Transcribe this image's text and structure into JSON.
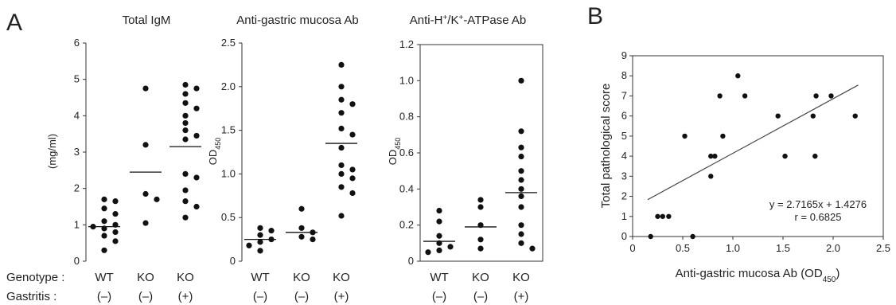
{
  "panel_labels": [
    "A",
    "B"
  ],
  "row_labels": {
    "genotype": "Genotype :",
    "gastritis": "Gastritis :"
  },
  "groups": [
    {
      "genotype": "WT",
      "gastritis": "(–)"
    },
    {
      "genotype": "KO",
      "gastritis": "(–)"
    },
    {
      "genotype": "KO",
      "gastritis": "(+)"
    }
  ],
  "chart_data": [
    {
      "type": "scatter",
      "title": "Total IgM",
      "ylabel": "(mg/ml)",
      "ylim": [
        0,
        6
      ],
      "yticks": [
        "0",
        "1",
        "2",
        "3",
        "4",
        "5",
        "6"
      ],
      "categories": [
        "WT (–)",
        "KO (–)",
        "KO (+)"
      ],
      "points": [
        [
          1.7,
          1.65,
          1.45,
          1.3,
          1.1,
          1.0,
          0.95,
          0.9,
          0.8,
          0.7,
          0.55,
          0.3
        ],
        [
          4.75,
          3.2,
          1.85,
          1.7,
          1.05
        ],
        [
          4.85,
          4.75,
          4.6,
          4.35,
          4.2,
          4.0,
          3.8,
          3.6,
          3.45,
          3.35,
          2.4,
          2.3,
          1.95,
          1.65,
          1.5,
          1.2
        ]
      ],
      "means": [
        0.95,
        2.45,
        3.15
      ]
    },
    {
      "type": "scatter",
      "title": "Anti-gastric mucosa Ab",
      "ylabel": "OD450",
      "ylim": [
        0,
        2.5
      ],
      "yticks": [
        "0",
        "0.5",
        "1.0",
        "1.5",
        "2.0",
        "2.5"
      ],
      "categories": [
        "WT (–)",
        "KO (–)",
        "KO (+)"
      ],
      "points": [
        [
          0.38,
          0.35,
          0.3,
          0.25,
          0.22,
          0.18,
          0.12
        ],
        [
          0.6,
          0.38,
          0.33,
          0.28,
          0.25
        ],
        [
          2.25,
          2.0,
          1.85,
          1.8,
          1.7,
          1.52,
          1.45,
          1.3,
          1.1,
          1.05,
          1.0,
          0.95,
          0.85,
          0.78,
          0.52
        ]
      ],
      "means": [
        0.25,
        0.33,
        1.35
      ]
    },
    {
      "type": "scatter",
      "title": "Anti-H+/K+-ATPase Ab",
      "ylabel": "OD450",
      "ylim": [
        0,
        1.2
      ],
      "yticks": [
        "0",
        "0.2",
        "0.4",
        "0.6",
        "0.8",
        "1.0",
        "1.2"
      ],
      "categories": [
        "WT (–)",
        "KO (–)",
        "KO (+)"
      ],
      "points": [
        [
          0.28,
          0.22,
          0.14,
          0.1,
          0.08,
          0.06,
          0.05
        ],
        [
          0.34,
          0.3,
          0.2,
          0.12,
          0.07
        ],
        [
          1.0,
          0.72,
          0.63,
          0.58,
          0.5,
          0.45,
          0.4,
          0.36,
          0.3,
          0.2,
          0.15,
          0.1,
          0.07
        ]
      ],
      "means": [
        0.11,
        0.19,
        0.38
      ]
    },
    {
      "type": "scatter",
      "xlabel": "Anti-gastric mucosa Ab (OD450)",
      "ylabel": "Total pathological score",
      "xlim": [
        0,
        2.5
      ],
      "ylim": [
        0,
        9
      ],
      "xticks": [
        "0",
        "0.5",
        "1.0",
        "1.5",
        "2.0",
        "2.5"
      ],
      "yticks": [
        "0",
        "1",
        "2",
        "3",
        "4",
        "5",
        "6",
        "7",
        "8",
        "9"
      ],
      "x": [
        0.18,
        0.25,
        0.3,
        0.36,
        0.52,
        0.6,
        0.78,
        0.78,
        0.82,
        0.87,
        0.9,
        1.05,
        1.12,
        1.45,
        1.52,
        1.8,
        1.82,
        1.83,
        1.98,
        2.22
      ],
      "y": [
        0,
        1,
        1,
        1,
        5,
        0,
        3,
        4,
        4,
        7,
        5,
        8,
        7,
        6,
        4,
        6,
        4,
        7,
        7,
        6
      ],
      "fit": {
        "slope": 2.7165,
        "intercept": 1.4276,
        "x_range": [
          0.15,
          2.25
        ]
      },
      "equation": "y = 2.7165x + 1.4276",
      "r_text": "r = 0.6825"
    }
  ]
}
